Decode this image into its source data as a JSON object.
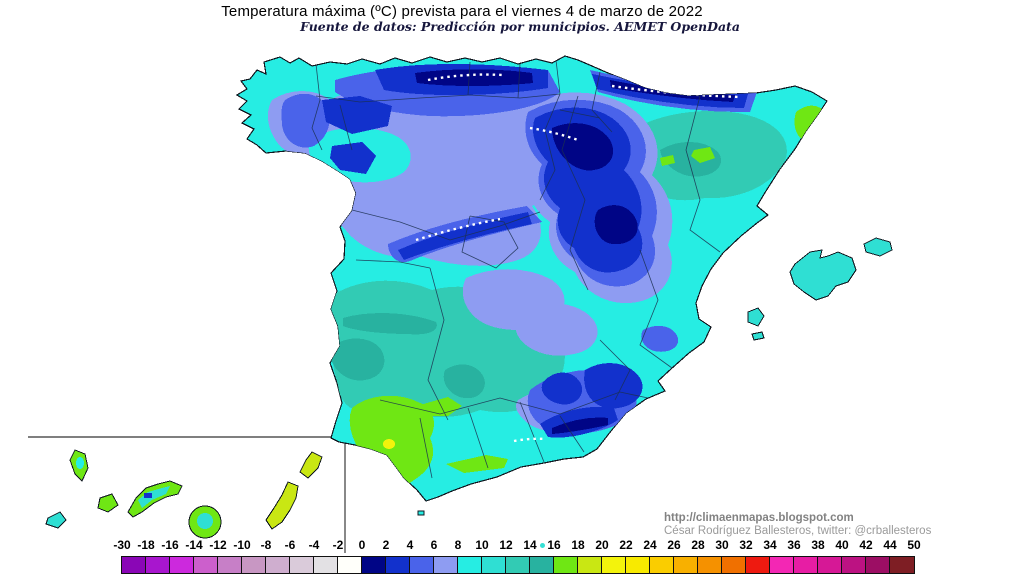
{
  "header": {
    "title": "Temperatura máxima (ºC) prevista para el viernes 4 de marzo de 2022",
    "subtitle": "Fuente de datos: Predicción por municipios. AEMET OpenData"
  },
  "attribution": {
    "url": "http://climaenmapas.blogspot.com",
    "author_line": "César Rodríguez Ballesteros, twitter: @crballesteros"
  },
  "scale": {
    "unit": "ºC",
    "tick_labels": [
      "-30",
      "-18",
      "-16",
      "-14",
      "-12",
      "-10",
      "-8",
      "-6",
      "-4",
      "-2",
      "0",
      "2",
      "4",
      "6",
      "8",
      "10",
      "12",
      "14",
      "16",
      "18",
      "20",
      "22",
      "24",
      "26",
      "28",
      "30",
      "32",
      "34",
      "36",
      "38",
      "40",
      "42",
      "44",
      "50"
    ],
    "segment_colors": [
      "#8A06B6",
      "#A816CE",
      "#CC29DD",
      "#CC5FCC",
      "#C77FC7",
      "#C897C3",
      "#CFAECF",
      "#DACBDA",
      "#E3E1E4",
      "#FFFFFA",
      "#000586",
      "#1231CC",
      "#4A63EA",
      "#8E9CF2",
      "#26EDE3",
      "#2FDFD3",
      "#32CBB4",
      "#28B2A0",
      "#6FE714",
      "#C9E713",
      "#F3F30C",
      "#F8EA00",
      "#FACD00",
      "#F8B000",
      "#F59100",
      "#F07000",
      "#EE1A10",
      "#F327B4",
      "#E71DA4",
      "#D61896",
      "#BC1282",
      "#9C0E64",
      "#7E1E24"
    ],
    "marker_dot_color": "#35E0D5"
  },
  "palette": {
    "sea_white": "#FFFFFF",
    "snow_white": "#FFFFFF",
    "t_0_2": "#000586",
    "t_2_4": "#1231CC",
    "t_4_6": "#4A63EA",
    "t_6_8": "#8E9CF2",
    "t_8_10": "#26EDE3",
    "t_10_12": "#2FDFD3",
    "t_12_14": "#32CBB4",
    "t_14_16": "#28B2A0",
    "t_16_18": "#6FE714",
    "t_18_20": "#C9E713",
    "t_20_22": "#F3F30C",
    "coastline": "#101820",
    "border_line": "#1C3050",
    "inset_line": "#555555"
  }
}
